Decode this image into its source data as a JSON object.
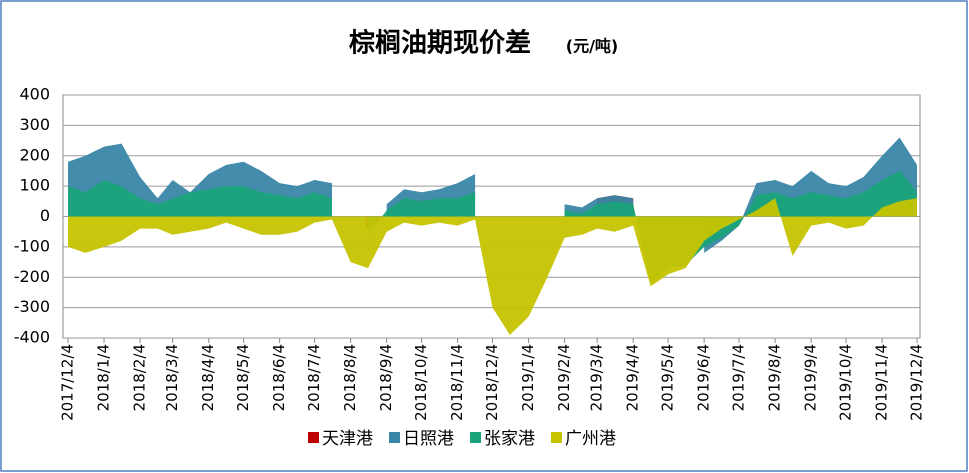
{
  "chart_data": {
    "type": "area",
    "title": "棕榈油期现价差",
    "unit": "(元/吨)",
    "x": [
      "2017/12/4",
      "2017/12/19",
      "2018/1/4",
      "2018/1/19",
      "2018/2/4",
      "2018/2/19",
      "2018/3/4",
      "2018/3/19",
      "2018/4/4",
      "2018/4/19",
      "2018/5/4",
      "2018/5/19",
      "2018/6/4",
      "2018/6/19",
      "2018/7/4",
      "2018/7/19",
      "2018/8/4",
      "2018/8/19",
      "2018/9/4",
      "2018/9/19",
      "2018/10/4",
      "2018/10/19",
      "2018/11/4",
      "2018/11/19",
      "2018/12/4",
      "2018/12/19",
      "2019/1/4",
      "2019/1/19",
      "2019/2/4",
      "2019/2/19",
      "2019/3/4",
      "2019/3/19",
      "2019/4/4",
      "2019/4/19",
      "2019/5/4",
      "2019/5/19",
      "2019/6/4",
      "2019/6/19",
      "2019/7/4",
      "2019/7/19",
      "2019/8/4",
      "2019/8/19",
      "2019/9/4",
      "2019/9/19",
      "2019/10/4",
      "2019/10/19",
      "2019/11/4",
      "2019/11/19",
      "2019/12/4"
    ],
    "xlim": [
      "2017/12/4",
      "2019/12/4"
    ],
    "xticks": [
      "2017/12/4",
      "2018/1/4",
      "2018/2/4",
      "2018/3/4",
      "2018/4/4",
      "2018/5/4",
      "2018/6/4",
      "2018/7/4",
      "2018/8/4",
      "2018/9/4",
      "2018/10/4",
      "2018/11/4",
      "2018/12/4",
      "2019/1/4",
      "2019/2/4",
      "2019/3/4",
      "2019/4/4",
      "2019/5/4",
      "2019/6/4",
      "2019/7/4",
      "2019/8/4",
      "2019/9/4",
      "2019/10/4",
      "2019/11/4",
      "2019/12/4"
    ],
    "ylim": [
      -400,
      400
    ],
    "yticks": [
      400,
      300,
      200,
      100,
      0,
      -100,
      -200,
      -300,
      -400
    ],
    "grid": true,
    "series": [
      {
        "name": "天津港",
        "color": "#c00000",
        "values": [
          null,
          null,
          null,
          null,
          null,
          null,
          null,
          null,
          null,
          null,
          null,
          null,
          null,
          null,
          null,
          null,
          null,
          -40,
          null,
          null,
          null,
          null,
          null,
          null,
          null,
          null,
          null,
          null,
          null,
          null,
          60,
          70,
          60,
          null,
          null,
          null,
          null,
          null,
          null,
          null,
          null,
          null,
          null,
          null,
          null,
          null,
          null,
          null,
          null
        ]
      },
      {
        "name": "日照港",
        "color": "#3a86a8",
        "values": [
          180,
          200,
          230,
          240,
          130,
          60,
          120,
          80,
          140,
          170,
          180,
          150,
          110,
          100,
          120,
          110,
          null,
          null,
          40,
          90,
          80,
          90,
          110,
          140,
          null,
          null,
          null,
          null,
          40,
          30,
          60,
          70,
          60,
          null,
          null,
          null,
          -120,
          -80,
          -30,
          110,
          120,
          100,
          150,
          110,
          100,
          130,
          200,
          260,
          170
        ]
      },
      {
        "name": "张家港",
        "color": "#1aa37a",
        "values": [
          100,
          80,
          120,
          100,
          60,
          40,
          60,
          80,
          90,
          100,
          100,
          80,
          70,
          60,
          80,
          60,
          null,
          -60,
          20,
          60,
          50,
          60,
          60,
          80,
          null,
          null,
          null,
          null,
          20,
          10,
          40,
          50,
          40,
          -220,
          -170,
          -160,
          -100,
          -70,
          -30,
          70,
          80,
          60,
          80,
          70,
          60,
          80,
          120,
          150,
          80
        ]
      },
      {
        "name": "广州港",
        "color": "#c6c400",
        "values": [
          -100,
          -120,
          -100,
          -80,
          -40,
          -40,
          -60,
          -50,
          -40,
          -20,
          -40,
          -60,
          -60,
          -50,
          -20,
          -10,
          -150,
          -170,
          -50,
          -20,
          -30,
          -20,
          -30,
          -10,
          -300,
          -390,
          -330,
          -210,
          -70,
          -60,
          -40,
          -50,
          -30,
          -230,
          -190,
          -170,
          -80,
          -40,
          -10,
          20,
          60,
          -130,
          -30,
          -20,
          -40,
          -30,
          30,
          50,
          60
        ]
      }
    ]
  }
}
